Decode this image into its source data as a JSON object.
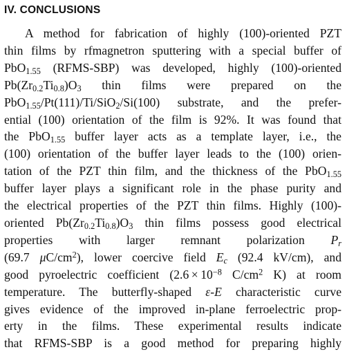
{
  "section": {
    "heading": "IV. CONCLUSIONS"
  },
  "lines": [
    "A method for fabrication of highly (100)-oriented PZT",
    "thin films by rfmagnetron sputtering with a special buffer of",
    "PbO1.55 (RFMS-SBP) was developed, highly (100)-oriented",
    "Pb(Zr0.2Ti0.8)O3 thin films were prepared on the",
    "PbO1.55/Pt(111)/Ti/SiO2/Si(100) substrate, and the prefer-",
    "ential (100) orientation of the film is 92%. It was found that",
    "the PbO1.55 buffer layer acts as a template layer, i.e., the",
    "(100) orientation of the buffer layer leads to the (100) orien-",
    "tation of the PZT thin film, and the thickness of the PbO1.55",
    "buffer layer plays a significant role in the phase purity and",
    "the electrical properties of the PZT thin films. Highly (100)-",
    "oriented Pb(Zr0.2Ti0.8)O3 thin films possess good electrical",
    "properties with larger remnant polarization Pr",
    "(69.7 μC/cm2), lower coercive field Ec (92.4 kV/cm), and",
    "good pyroelectric coefficient (2.6×10−8 C/cm2 K) at room",
    "temperature. The butterfly-shaped ε-E characteristic curve",
    "gives evidence of the improved in-plane ferroelectric prop-",
    "erty in the films. These experimental results indicate",
    "that RFMS-SBP is a good method for preparing highly"
  ]
}
